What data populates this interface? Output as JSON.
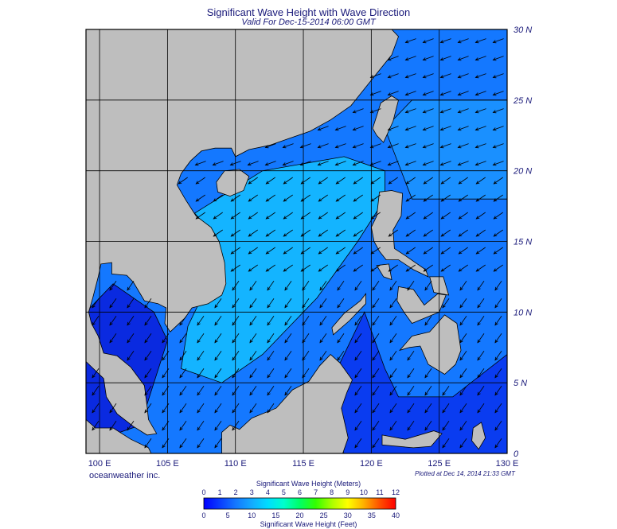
{
  "title": "Significant Wave Height with Wave Direction",
  "subtitle": "Valid For Dec-15-2014 06:00 GMT",
  "credit": "oceanweather inc.",
  "plotted": "Plotted at Dec 14, 2014 21:33 GMT",
  "lon_labels": [
    "100 E",
    "105 E",
    "110 E",
    "115 E",
    "120 E",
    "125 E",
    "130 E"
  ],
  "lat_labels": [
    "30 N",
    "25 N",
    "20 N",
    "15 N",
    "10 N",
    "5 N",
    "0"
  ],
  "lon_range": [
    99,
    130
  ],
  "lat_range": [
    0,
    30
  ],
  "colorbar": {
    "title_meters": "Significant Wave Height (Meters)",
    "title_feet": "Significant Wave Height (Feet)",
    "meters_ticks": [
      "0",
      "1",
      "2",
      "3",
      "4",
      "5",
      "6",
      "7",
      "8",
      "9",
      "10",
      "11",
      "12"
    ],
    "feet_ticks": [
      "0",
      "5",
      "10",
      "15",
      "20",
      "25",
      "30",
      "35",
      "40"
    ],
    "colors": [
      "#0000ff",
      "#0a3cff",
      "#1478ff",
      "#14aaff",
      "#00dcff",
      "#00ffcc",
      "#00ff66",
      "#33ff00",
      "#aaff00",
      "#ffff00",
      "#ffb000",
      "#ff5000",
      "#ff0000"
    ]
  },
  "colors": {
    "land": "#bebebe",
    "coast": "#000000",
    "grid": "#000000",
    "sea_low": "#0a3cf0",
    "sea_mid": "#1478ff",
    "sea_high": "#14b4ff",
    "text": "#1a1a7a"
  },
  "arrow_direction": "toward southwest"
}
